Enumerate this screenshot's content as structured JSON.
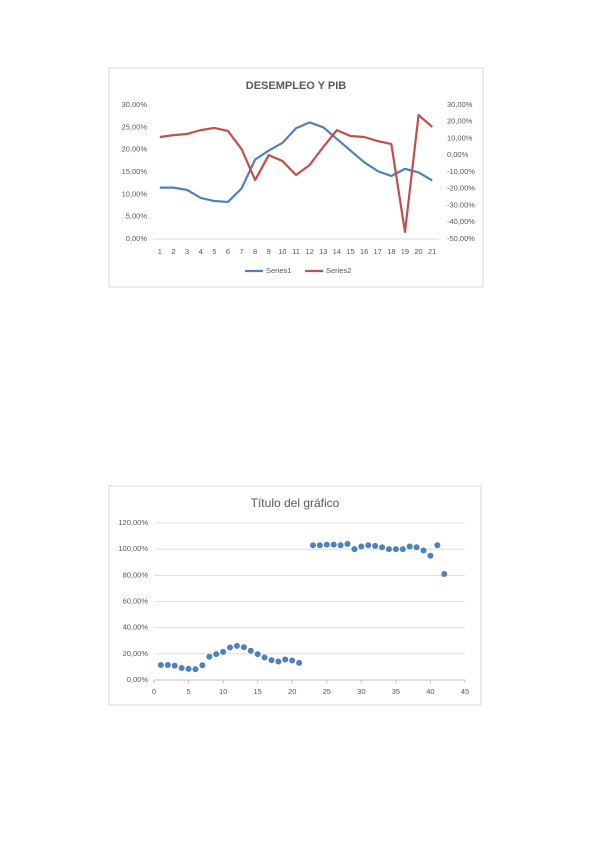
{
  "chart_data": [
    {
      "type": "line",
      "title": "DESEMPLEO Y PIB",
      "categories": [
        "1",
        "2",
        "3",
        "4",
        "5",
        "6",
        "7",
        "8",
        "9",
        "10",
        "11",
        "12",
        "13",
        "14",
        "15",
        "16",
        "17",
        "18",
        "19",
        "20",
        "21"
      ],
      "series": [
        {
          "name": "Series1",
          "color": "#4f81bd",
          "values": [
            11.5,
            11.5,
            11,
            9.2,
            8.5,
            8.3,
            11.3,
            17.8,
            19.8,
            21.5,
            24.8,
            26.1,
            25,
            22.4,
            19.8,
            17.2,
            15.2,
            14.1,
            15.7,
            14.9,
            13.1
          ]
        },
        {
          "name": "Series2",
          "color": "#c0504d",
          "axis": "y2",
          "values": [
            10.9,
            12,
            12.7,
            15,
            16.3,
            14.5,
            3.7,
            -14.8,
            0.1,
            -3.4,
            -11.8,
            -5.8,
            4.9,
            15,
            11.5,
            10.9,
            8.5,
            6.7,
            -45.8,
            24,
            16.9
          ]
        }
      ],
      "ylim": [
        0,
        30
      ],
      "yticks": [
        {
          "value": 0,
          "label": "0,00%"
        },
        {
          "value": 5,
          "label": "5,00%"
        },
        {
          "value": 10,
          "label": "10,00%"
        },
        {
          "value": 15,
          "label": "15,00%"
        },
        {
          "value": 20,
          "label": "20,00%"
        },
        {
          "value": 25,
          "label": "25,00%"
        },
        {
          "value": 30,
          "label": "30,00%"
        }
      ],
      "y2lim": [
        -50,
        30
      ],
      "y2ticks": [
        {
          "value": -50,
          "label": "-50,00%"
        },
        {
          "value": -40,
          "label": "-40,00%"
        },
        {
          "value": -30,
          "label": "-30,00%"
        },
        {
          "value": -20,
          "label": "-20,00%"
        },
        {
          "value": -10,
          "label": "-10,00%"
        },
        {
          "value": 0,
          "label": "0,00%"
        },
        {
          "value": 10,
          "label": "10,00%"
        },
        {
          "value": 20,
          "label": "20,00%"
        },
        {
          "value": 30,
          "label": "30,00%"
        }
      ],
      "grid": false,
      "legend": "bottom"
    },
    {
      "type": "scatter",
      "title": "Título del gráfico",
      "color": "#4f81bd",
      "x": [
        1,
        2,
        3,
        4,
        5,
        6,
        7,
        8,
        9,
        10,
        11,
        12,
        13,
        14,
        15,
        16,
        17,
        18,
        19,
        20,
        21,
        23,
        24,
        25,
        26,
        27,
        28,
        29,
        30,
        31,
        32,
        33,
        34,
        35,
        36,
        37,
        38,
        39,
        40,
        41,
        42
      ],
      "values": [
        11.5,
        11.5,
        11,
        9.2,
        8.5,
        8.3,
        11.3,
        17.8,
        19.8,
        21.5,
        24.8,
        26.1,
        25,
        22.4,
        19.8,
        17.2,
        15.2,
        14.1,
        15.7,
        14.9,
        13.1,
        103,
        103,
        103.5,
        103.5,
        103,
        104,
        100,
        102,
        103,
        102.5,
        101.5,
        100,
        100,
        100,
        102,
        101.5,
        99,
        95,
        103,
        81
      ],
      "xlim": [
        0,
        45
      ],
      "xticks": [
        0,
        5,
        10,
        15,
        20,
        25,
        30,
        35,
        40,
        45
      ],
      "ylim": [
        0,
        120
      ],
      "yticks": [
        {
          "value": 0,
          "label": "0,00%"
        },
        {
          "value": 20,
          "label": "20,00%"
        },
        {
          "value": 40,
          "label": "40,00%"
        },
        {
          "value": 60,
          "label": "60,00%"
        },
        {
          "value": 80,
          "label": "80,00%"
        },
        {
          "value": 100,
          "label": "100,00%"
        },
        {
          "value": 120,
          "label": "120,00%"
        }
      ],
      "grid": true
    }
  ]
}
